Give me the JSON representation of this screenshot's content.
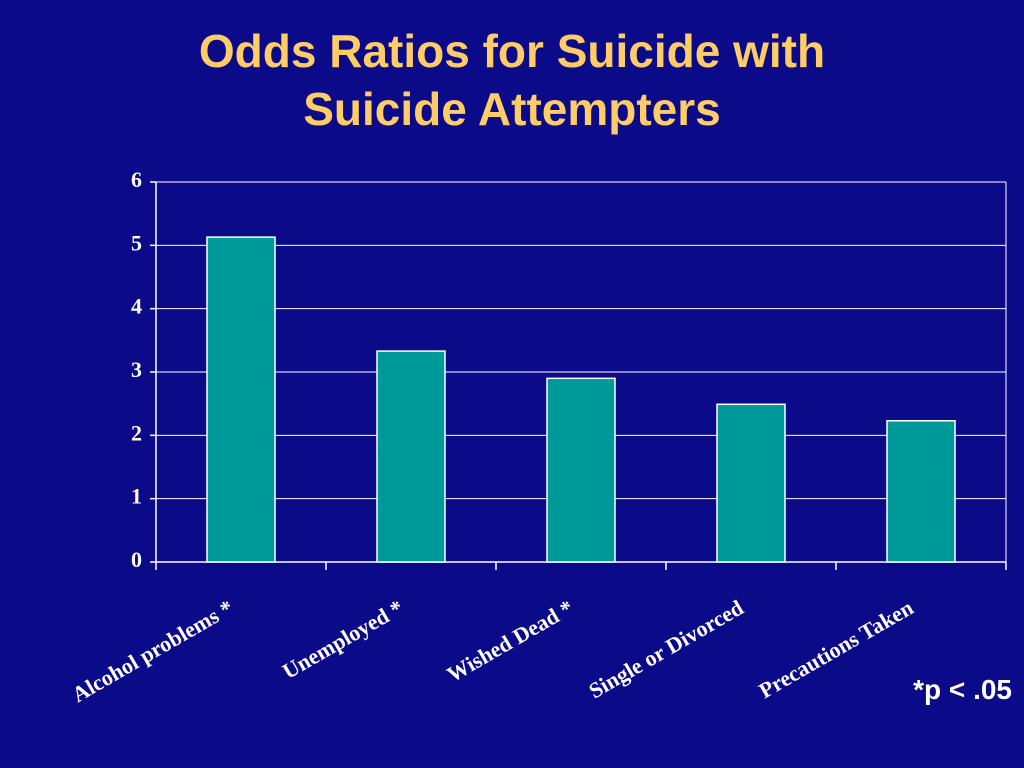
{
  "chart_data": {
    "type": "bar",
    "title": "Odds Ratios for Suicide with Suicide Attempters",
    "categories": [
      "Alcohol problems *",
      "Unemployed *",
      "Wished Dead *",
      "Single or Divorced",
      "Precautions Taken"
    ],
    "values": [
      5.13,
      3.33,
      2.9,
      2.49,
      2.23
    ],
    "color": "#009999",
    "ylim": [
      0,
      6
    ],
    "yticks": [
      0,
      1,
      2,
      3,
      4,
      5,
      6
    ],
    "grid": true,
    "annotation": "*p < .05"
  }
}
